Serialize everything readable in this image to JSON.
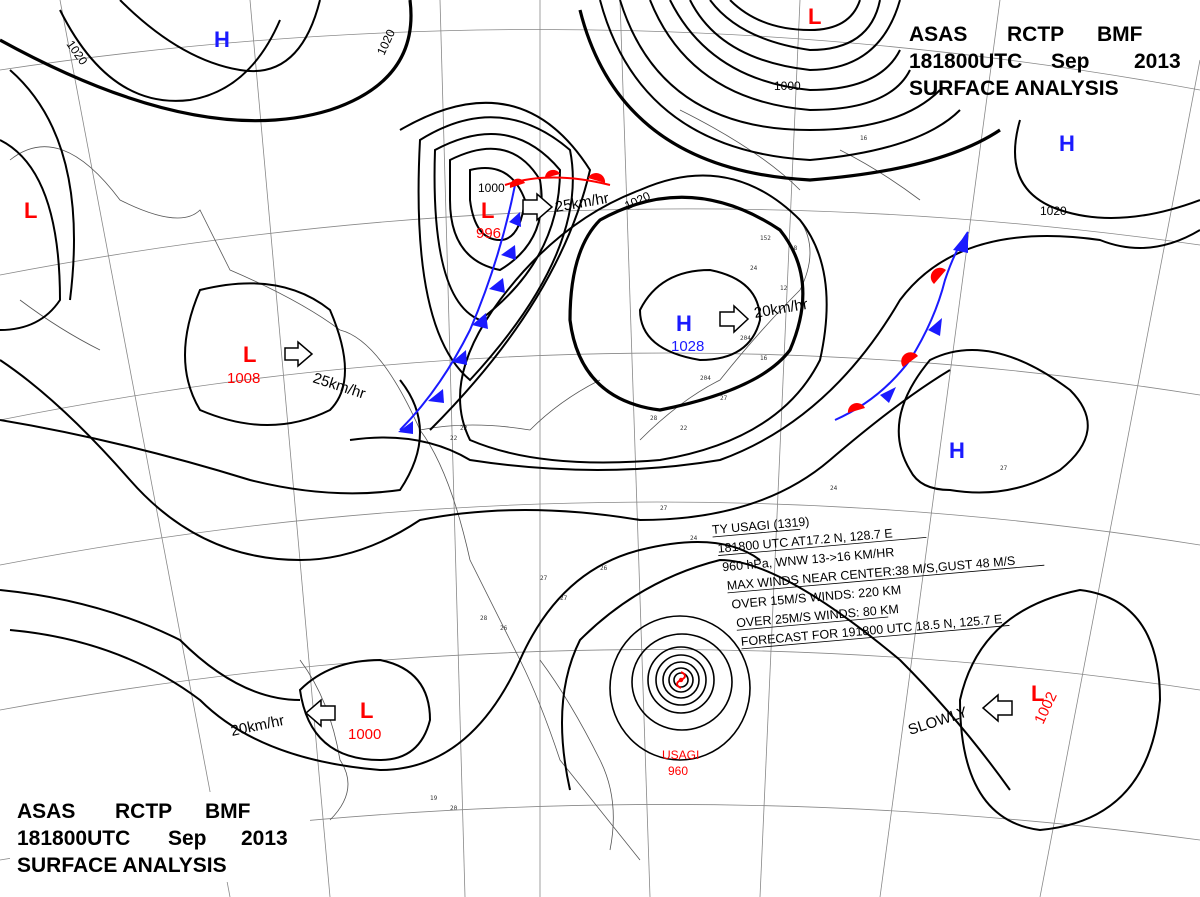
{
  "header_top": {
    "line1": [
      "ASAS",
      "RCTP",
      "BMF"
    ],
    "line2": [
      "181800UTC",
      "Sep",
      "2013"
    ],
    "line3": "SURFACE  ANALYSIS"
  },
  "header_bottom": {
    "line1": [
      "ASAS",
      "RCTP",
      "BMF"
    ],
    "line2": [
      "181800UTC",
      "Sep",
      "2013"
    ],
    "line3": "SURFACE  ANALYSIS"
  },
  "isobar_labels": {
    "a": "1020",
    "b": "1020",
    "c": "1000",
    "d": "1020",
    "e": "1020",
    "f": "1000"
  },
  "pressure_systems": {
    "l_nw": {
      "symbol": "L"
    },
    "h_top": {
      "symbol": "H"
    },
    "l_top": {
      "symbol": "L"
    },
    "h_ne": {
      "symbol": "H"
    },
    "l_mongolia": {
      "symbol": "L",
      "value": "1008",
      "motion": "25km/hr"
    },
    "l_front": {
      "symbol": "L",
      "value": "996",
      "motion": "25km/hr"
    },
    "h_china": {
      "symbol": "H",
      "value": "1028",
      "motion": "20km/hr"
    },
    "h_east": {
      "symbol": "H"
    },
    "l_south": {
      "symbol": "L",
      "value": "1000",
      "motion": "20km/hr"
    },
    "l_se": {
      "symbol": "L",
      "value": "1002",
      "motion": "SLOWLY"
    }
  },
  "typhoon": {
    "name_label": "USAGI",
    "pressure_label": "960",
    "bulletin": [
      "TY  USAGI  (1319)",
      "181800 UTC  AT17.2 N, 128.7 E",
      "960 hPa, WNW  13->16 KM/HR",
      "MAX WINDS NEAR CENTER:38 M/S,GUST 48 M/S",
      "OVER 15M/S WINDS: 220 KM",
      "OVER 25M/S WINDS: 80 KM",
      "FORECAST FOR 191800 UTC 18.5 N, 125.7 E"
    ]
  },
  "colors": {
    "high": "#1a1aff",
    "low": "#ff0000",
    "isobar": "#000000",
    "grid": "#888888"
  }
}
